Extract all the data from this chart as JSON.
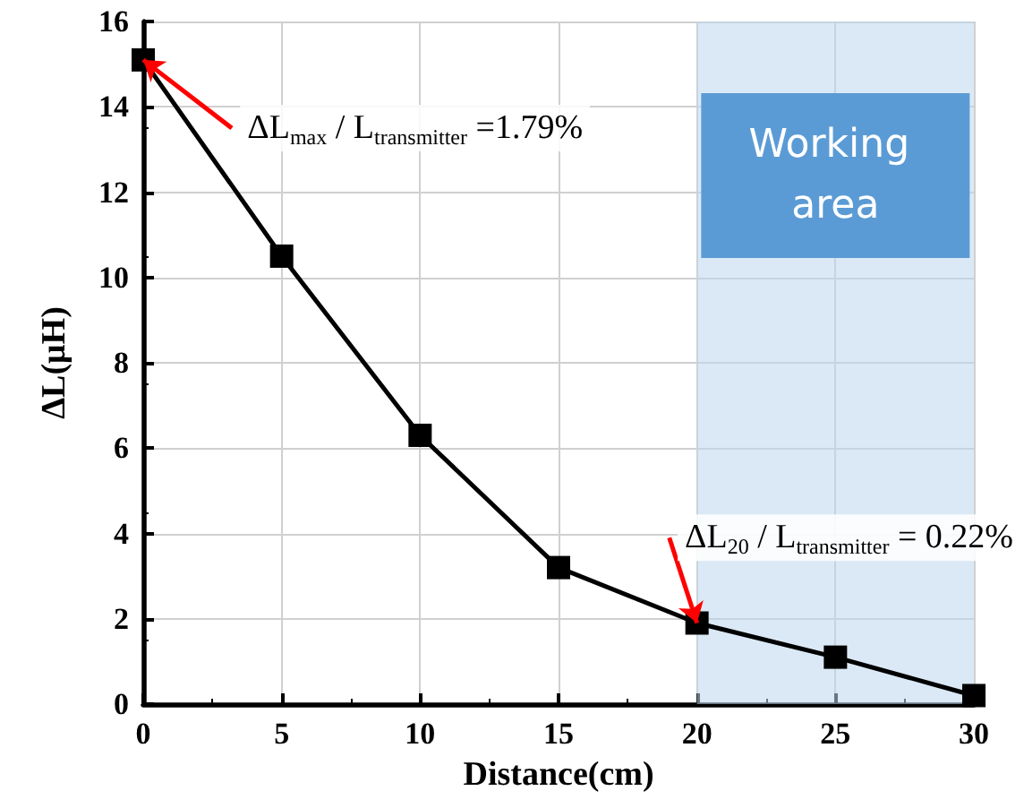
{
  "chart_data": {
    "type": "line",
    "xlabel": "Distance(cm)",
    "ylabel": "ΔL(μH)",
    "x": [
      0,
      5,
      10,
      15,
      20,
      25,
      30
    ],
    "series": [
      {
        "color": "#000000",
        "values": [
          15.1,
          10.5,
          6.3,
          3.2,
          1.9,
          1.1,
          0.2
        ]
      }
    ],
    "xlim": [
      0,
      30
    ],
    "xticks": [
      0,
      5,
      10,
      15,
      20,
      25,
      30
    ],
    "ylim": [
      0,
      16
    ],
    "yticks": [
      0,
      2,
      4,
      6,
      8,
      10,
      12,
      14,
      16
    ],
    "grid": true,
    "marker": "square",
    "line_style": "solid",
    "bands": [
      {
        "axis": "x",
        "from": 20,
        "to": 30,
        "label": "Working area",
        "color": "#bdd7ee"
      }
    ],
    "annotations": [
      {
        "text": "ΔL$_{max}$ / L$_{transmitter}$ =1.79%",
        "x": 0,
        "y": 15.1
      },
      {
        "text": "ΔL$_{20}$ / L$_{transmitter}$ = 0.22%",
        "x": 20,
        "y": 1.9
      }
    ]
  }
}
